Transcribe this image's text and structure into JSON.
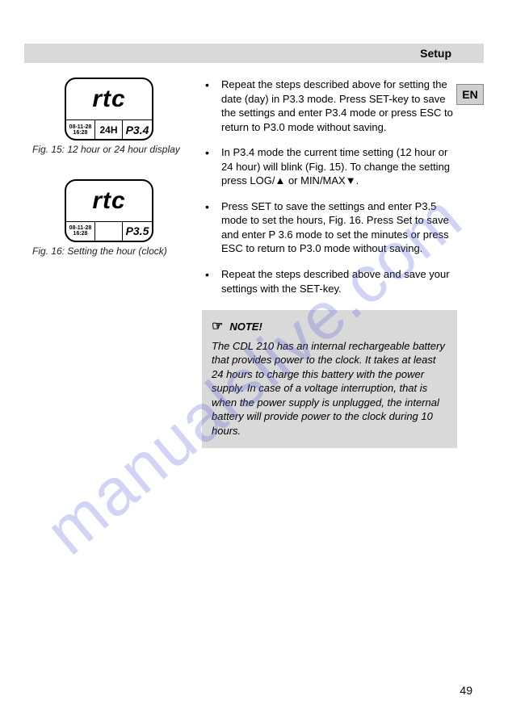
{
  "header": {
    "title": "Setup"
  },
  "lang_badge": "EN",
  "figures": {
    "fig15": {
      "lcd_main": "rtc",
      "cell1_top": "08-11-28",
      "cell1_bot": "16:28",
      "cell2": "24H",
      "cell3": "P3.4",
      "caption": "Fig. 15: 12 hour or 24 hour display"
    },
    "fig16": {
      "lcd_main": "rtc",
      "cell1_top": "08-11-28",
      "cell1_bot": "16:28",
      "cell3": "P3.5",
      "caption": "Fig. 16: Setting the hour (clock)"
    }
  },
  "bullets": [
    "Repeat the steps described above for setting the date (day) in P3.3 mode. Press SET-key to save the settings and enter P3.4 mode or press ESC to return to P3.0 mode without saving.",
    "In P3.4 mode the current time setting (12 hour or 24 hour) will blink (Fig. 15). To change the setting press LOG/▲ or MIN/MAX▼.",
    "Press SET to save the settings and enter P3.5 mode to set the hours, Fig. 16. Press Set to save and enter P 3.6 mode to set the minutes or press ESC to return to P3.0 mode without saving.",
    "Repeat the steps described above and save your settings with the SET-key."
  ],
  "note": {
    "icon": "☞",
    "label": "NOTE!",
    "body": "The CDL 210 has an internal rechargeable battery that provides power to the clock. It takes at least 24 hours to charge this battery with the power supply. In case of a voltage interruption, that is when the power supply is unplugged, the internal battery will provide power to the clock during 10 hours."
  },
  "page_number": "49",
  "watermark": "manualslive.com"
}
